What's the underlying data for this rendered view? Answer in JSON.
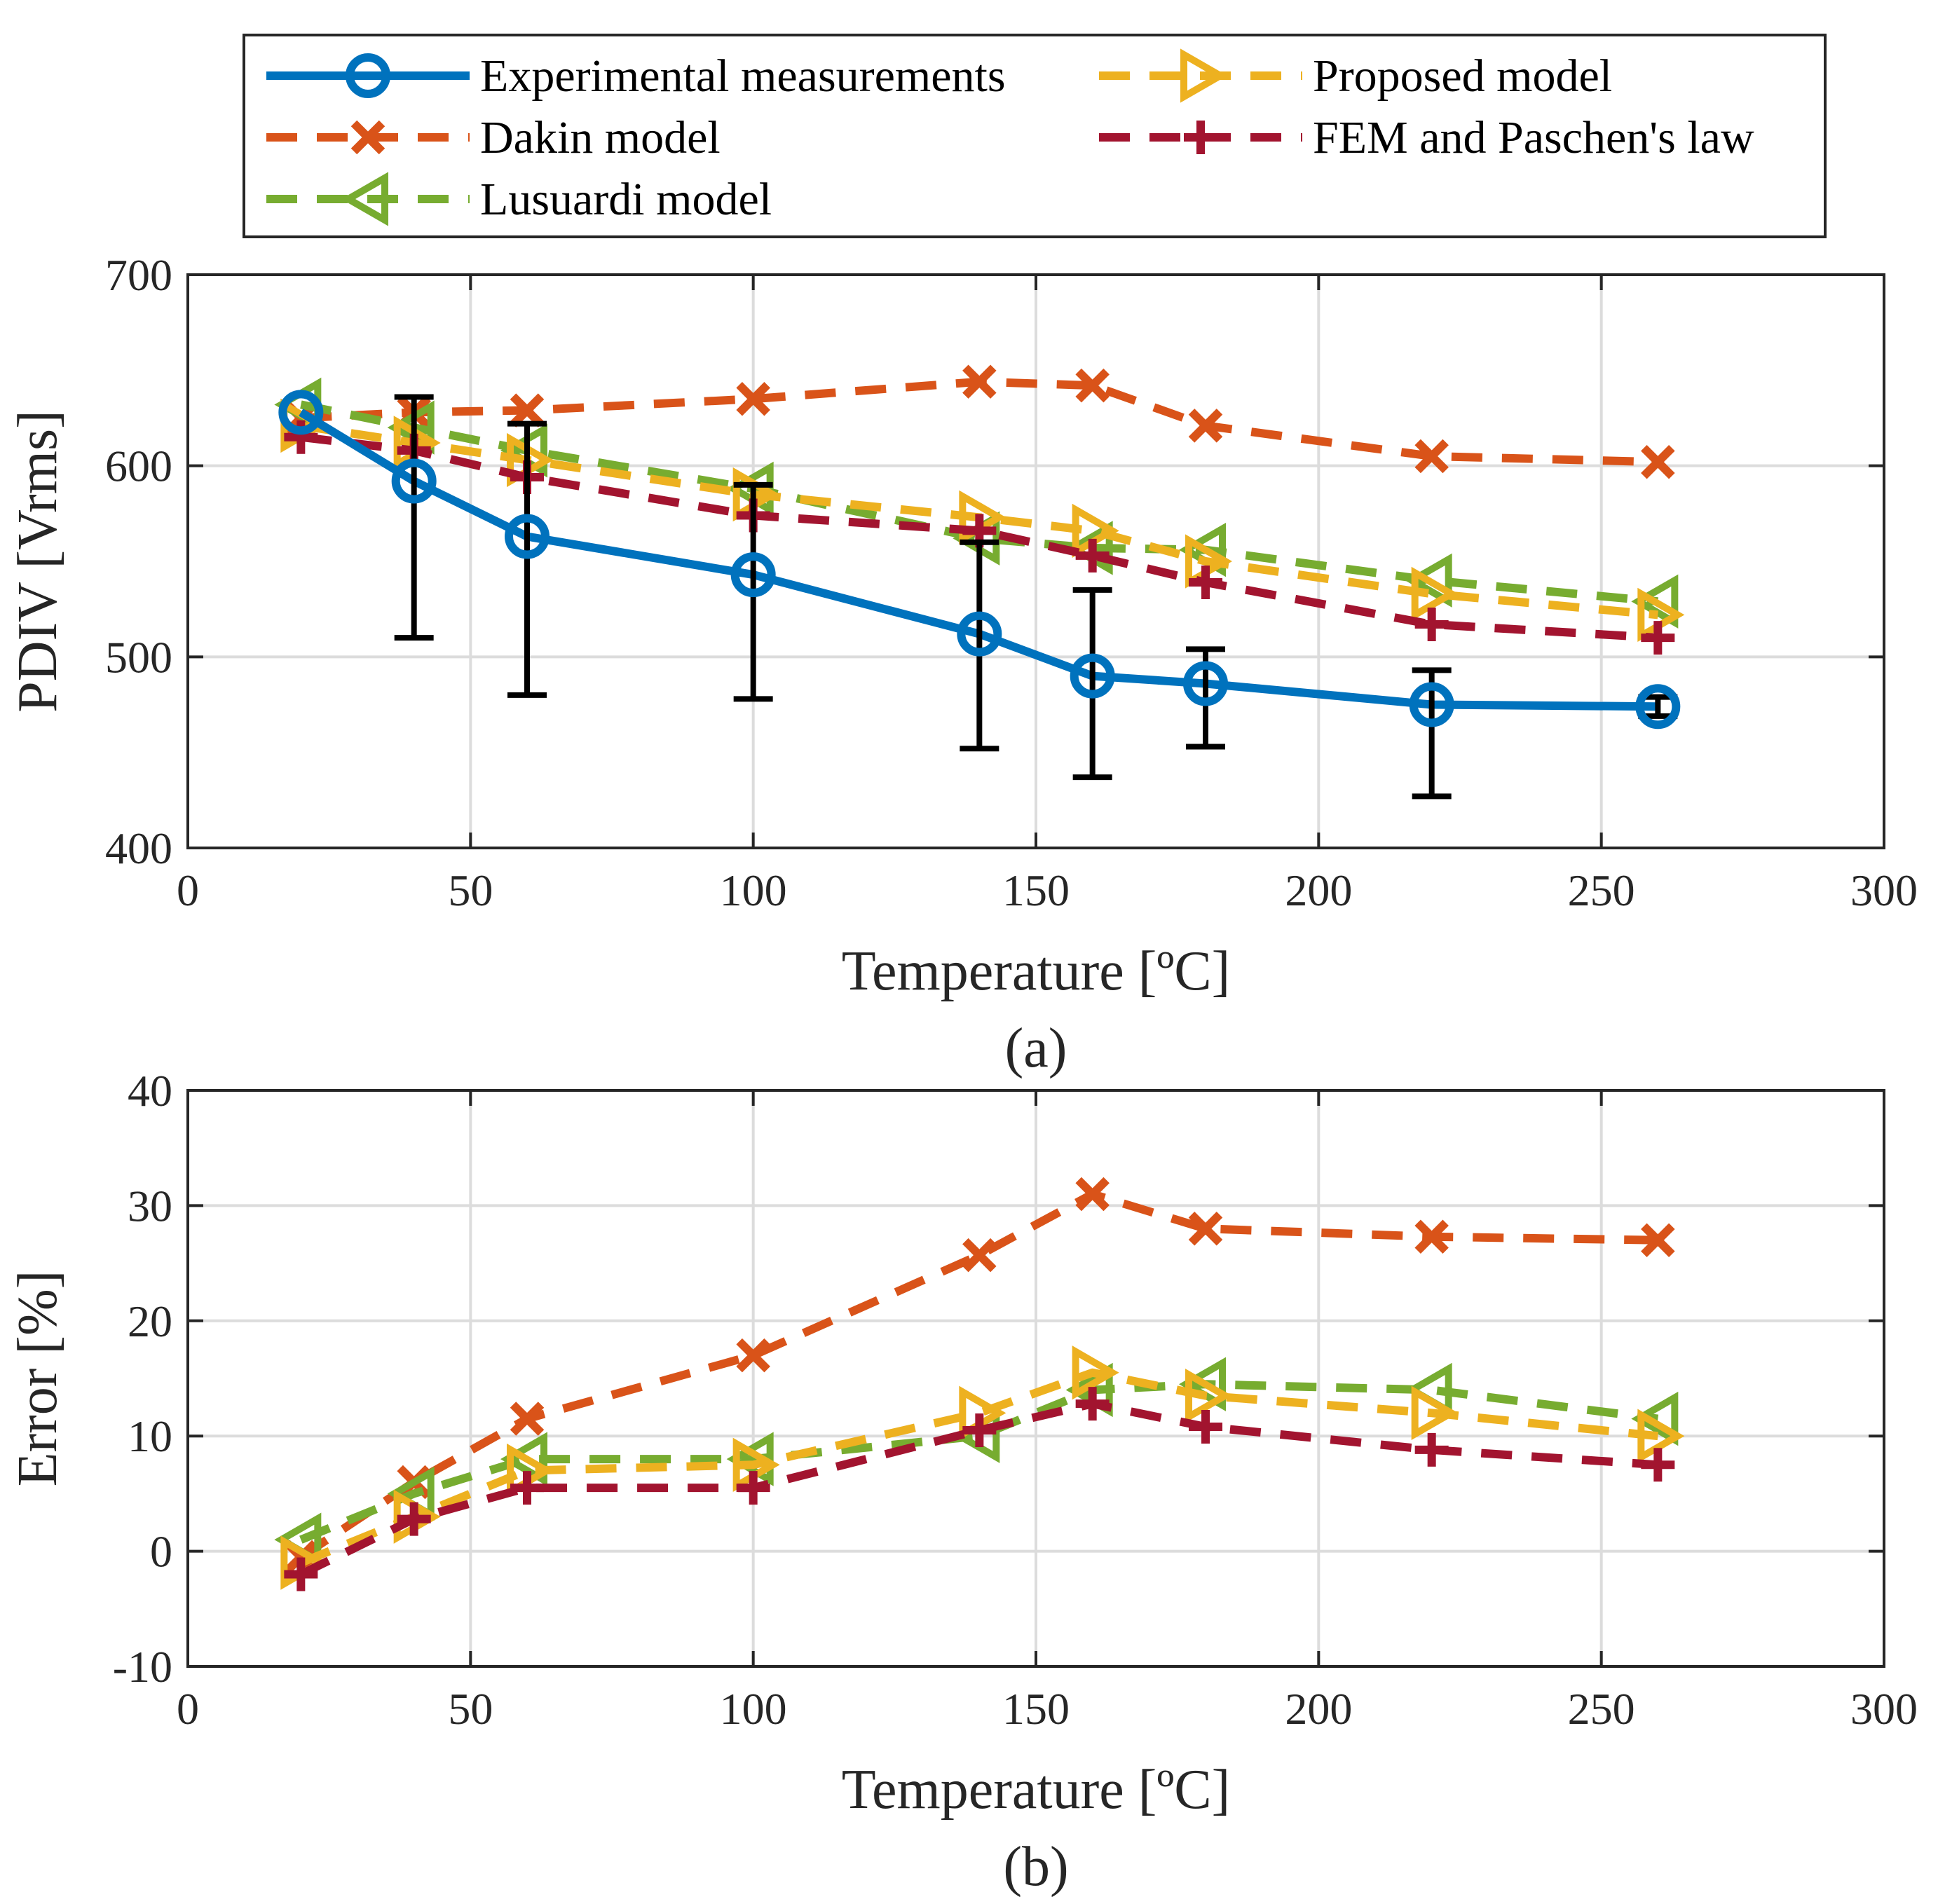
{
  "legend": [
    {
      "label": "Experimental measurements",
      "color": "#0072BD",
      "marker": "circle",
      "dash": "solid"
    },
    {
      "label": "Dakin model",
      "color": "#D95319",
      "marker": "x",
      "dash": "dashed"
    },
    {
      "label": "Lusuardi model",
      "color": "#77AC30",
      "marker": "triangle-left",
      "dash": "dashed"
    },
    {
      "label": "Proposed model",
      "color": "#EDB120",
      "marker": "triangle-right",
      "dash": "dashed"
    },
    {
      "label": "FEM and Paschen's law",
      "color": "#A2142F",
      "marker": "plus",
      "dash": "dashed"
    }
  ],
  "chart_data": [
    {
      "type": "line",
      "caption": "(a)",
      "xlabel": "Temperature [ºC]",
      "ylabel": "PDIV [Vrms]",
      "xlim": [
        0,
        300
      ],
      "ylim": [
        400,
        700
      ],
      "xticks": [
        0,
        50,
        100,
        150,
        200,
        250,
        300
      ],
      "yticks": [
        400,
        500,
        600,
        700
      ],
      "grid": true,
      "series": [
        {
          "name": "Experimental measurements",
          "x": [
            20,
            40,
            60,
            100,
            140,
            160,
            180,
            220,
            260
          ],
          "y": [
            628,
            592,
            563,
            543,
            512,
            490,
            486,
            475,
            474
          ],
          "err_low": [
            null,
            510,
            480,
            478,
            452,
            437,
            453,
            427,
            469
          ],
          "err_high": [
            null,
            636,
            622,
            590,
            560,
            535,
            504,
            493,
            479
          ]
        },
        {
          "name": "Dakin model",
          "x": [
            20,
            40,
            60,
            100,
            140,
            160,
            180,
            220,
            260
          ],
          "y": [
            625,
            628,
            629,
            635,
            644,
            642,
            621,
            605,
            602
          ]
        },
        {
          "name": "Lusuardi model",
          "x": [
            20,
            40,
            60,
            100,
            140,
            160,
            180,
            220,
            260
          ],
          "y": [
            632,
            620,
            608,
            588,
            562,
            557,
            556,
            540,
            529
          ]
        },
        {
          "name": "Proposed model",
          "x": [
            20,
            40,
            60,
            100,
            140,
            160,
            180,
            220,
            260
          ],
          "y": [
            621,
            612,
            603,
            585,
            573,
            566,
            550,
            533,
            522
          ]
        },
        {
          "name": "FEM and Paschen's law",
          "x": [
            20,
            40,
            60,
            100,
            140,
            160,
            180,
            220,
            260
          ],
          "y": [
            615,
            608,
            594,
            574,
            566,
            553,
            539,
            517,
            510
          ]
        }
      ]
    },
    {
      "type": "line",
      "caption": "(b)",
      "xlabel": "Temperature [ºC]",
      "ylabel": "Error [%]",
      "xlim": [
        0,
        300
      ],
      "ylim": [
        -10,
        40
      ],
      "xticks": [
        0,
        50,
        100,
        150,
        200,
        250,
        300
      ],
      "yticks": [
        -10,
        0,
        10,
        20,
        30,
        40
      ],
      "grid": true,
      "series": [
        {
          "name": "Dakin model",
          "x": [
            20,
            40,
            60,
            100,
            140,
            160,
            180,
            220,
            260
          ],
          "y": [
            -0.5,
            6,
            11.5,
            17,
            25.7,
            31,
            28,
            27.3,
            27
          ]
        },
        {
          "name": "Lusuardi model",
          "x": [
            20,
            40,
            60,
            100,
            140,
            160,
            180,
            220,
            260
          ],
          "y": [
            1,
            5,
            8,
            8,
            10,
            14,
            14.5,
            14,
            11.5
          ]
        },
        {
          "name": "Proposed model",
          "x": [
            20,
            40,
            60,
            100,
            140,
            160,
            180,
            220,
            260
          ],
          "y": [
            -1,
            3,
            7,
            7.5,
            12,
            15.5,
            13.5,
            12,
            10
          ]
        },
        {
          "name": "FEM and Paschen's law",
          "x": [
            20,
            40,
            60,
            100,
            140,
            160,
            180,
            220,
            260
          ],
          "y": [
            -2,
            2.8,
            5.5,
            5.5,
            10.5,
            12.8,
            10.8,
            8.8,
            7.5
          ]
        }
      ]
    }
  ]
}
